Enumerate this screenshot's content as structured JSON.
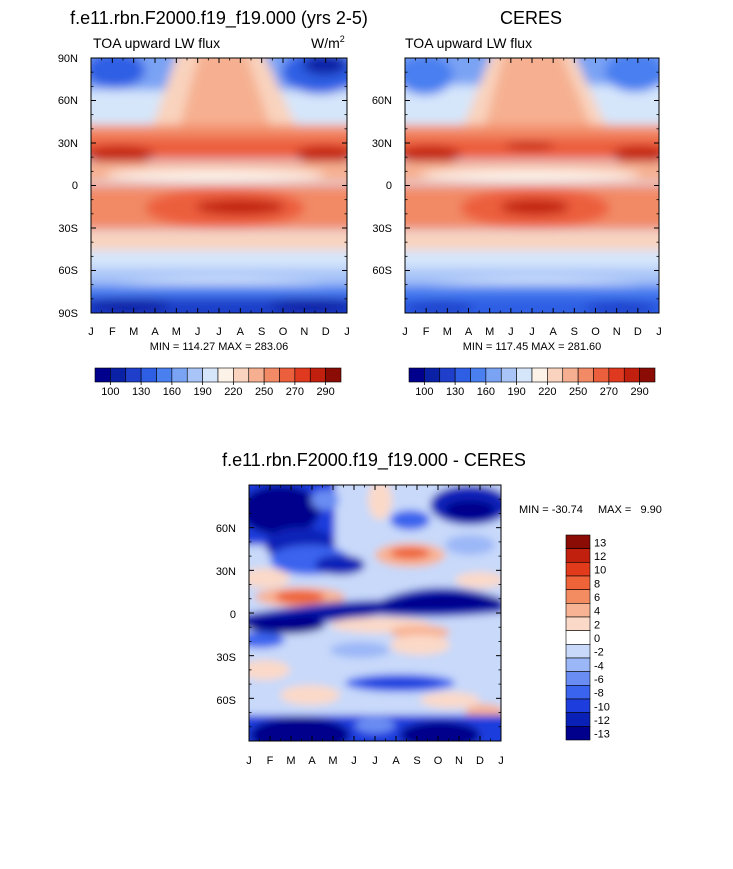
{
  "panels": [
    {
      "title": "f.e11.rbn.F2000.f19_f19.000 (yrs 2-5)",
      "subtitle": "TOA upward LW flux",
      "units_label": "W/m",
      "units_exp": "2",
      "stats": "MIN = 114.27 MAX = 283.06"
    },
    {
      "title": "CERES",
      "subtitle": "TOA upward LW flux",
      "stats": "MIN = 117.45 MAX = 281.60"
    },
    {
      "title": "f.e11.rbn.F2000.f19_f19.000 - CERES",
      "stats_min": "MIN = -30.74",
      "stats_max": "MAX =   9.90"
    }
  ],
  "colors": {
    "abs_palette": [
      "#00008c",
      "#0a21a6",
      "#1f3fca",
      "#2d5ee4",
      "#4a7ff0",
      "#7aa3f4",
      "#a9c5f8",
      "#d5e6fb",
      "#fdf2e8",
      "#f9d3bd",
      "#f6b091",
      "#f28a66",
      "#ec5f3d",
      "#df3a1f",
      "#c2200f",
      "#8a0c05"
    ],
    "diff_palette": [
      "#00008c",
      "#0a21b8",
      "#1d3edd",
      "#3a63ee",
      "#6a8df3",
      "#9bb7f7",
      "#c8d9fa",
      "#ffffff",
      "#fbd9c8",
      "#f8b394",
      "#f48c62",
      "#ee6338",
      "#e23b1b",
      "#c2200f",
      "#8a0c05"
    ]
  },
  "chart_data": [
    {
      "type": "heatmap",
      "title": "f.e11.rbn.F2000.f19_f19.000 (yrs 2-5)",
      "subtitle": "TOA upward LW flux",
      "units": "W/m2",
      "x": [
        "J",
        "F",
        "M",
        "A",
        "M",
        "J",
        "J",
        "A",
        "S",
        "O",
        "N",
        "D",
        "J"
      ],
      "y_ticks": [
        "90N",
        "60N",
        "30N",
        "0",
        "30S",
        "60S",
        "90S"
      ],
      "ylim": [
        -90,
        90
      ],
      "colorbar_labels": [
        "100",
        "130",
        "160",
        "190",
        "220",
        "250",
        "270",
        "290"
      ],
      "min": 114.27,
      "max": 283.06
    },
    {
      "type": "heatmap",
      "title": "CERES",
      "subtitle": "TOA upward LW flux",
      "x": [
        "J",
        "F",
        "M",
        "A",
        "M",
        "J",
        "J",
        "A",
        "S",
        "O",
        "N",
        "D",
        "J"
      ],
      "y_ticks": [
        "60N",
        "30N",
        "0",
        "30S",
        "60S"
      ],
      "ylim": [
        -90,
        90
      ],
      "colorbar_labels": [
        "100",
        "130",
        "160",
        "190",
        "220",
        "250",
        "270",
        "290"
      ],
      "min": 117.45,
      "max": 281.6
    },
    {
      "type": "heatmap",
      "title": "f.e11.rbn.F2000.f19_f19.000 - CERES",
      "x": [
        "J",
        "F",
        "M",
        "A",
        "M",
        "J",
        "J",
        "A",
        "S",
        "O",
        "N",
        "D",
        "J"
      ],
      "y_ticks": [
        "60N",
        "30N",
        "0",
        "30S",
        "60S"
      ],
      "ylim": [
        -90,
        90
      ],
      "colorbar_labels": [
        "13",
        "12",
        "10",
        "8",
        "6",
        "4",
        "2",
        "0",
        "-2",
        "-4",
        "-6",
        "-8",
        "-10",
        "-12",
        "-13"
      ],
      "min": -30.74,
      "max": 9.9
    }
  ]
}
